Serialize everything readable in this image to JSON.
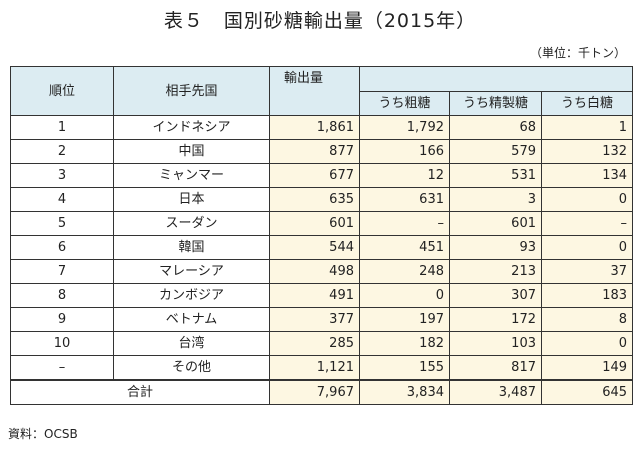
{
  "title": "表５　国別砂糖輸出量（2015年）",
  "unit": "（単位：千トン）",
  "source": "資料：OCSB",
  "headers": {
    "rank": "順位",
    "partner": "相手先国",
    "export": "輸出量",
    "raw": "うち粗糖",
    "refined": "うち精製糖",
    "white": "うち白糖"
  },
  "rows": [
    {
      "rank": "1",
      "partner": "インドネシア",
      "export": "1,861",
      "raw": "1,792",
      "refined": "68",
      "white": "1"
    },
    {
      "rank": "2",
      "partner": "中国",
      "export": "877",
      "raw": "166",
      "refined": "579",
      "white": "132"
    },
    {
      "rank": "3",
      "partner": "ミャンマー",
      "export": "677",
      "raw": "12",
      "refined": "531",
      "white": "134"
    },
    {
      "rank": "4",
      "partner": "日本",
      "export": "635",
      "raw": "631",
      "refined": "3",
      "white": "0"
    },
    {
      "rank": "5",
      "partner": "スーダン",
      "export": "601",
      "raw": "–",
      "refined": "601",
      "white": "–"
    },
    {
      "rank": "6",
      "partner": "韓国",
      "export": "544",
      "raw": "451",
      "refined": "93",
      "white": "0"
    },
    {
      "rank": "7",
      "partner": "マレーシア",
      "export": "498",
      "raw": "248",
      "refined": "213",
      "white": "37"
    },
    {
      "rank": "8",
      "partner": "カンボジア",
      "export": "491",
      "raw": "0",
      "refined": "307",
      "white": "183"
    },
    {
      "rank": "9",
      "partner": "ベトナム",
      "export": "377",
      "raw": "197",
      "refined": "172",
      "white": "8"
    },
    {
      "rank": "10",
      "partner": "台湾",
      "export": "285",
      "raw": "182",
      "refined": "103",
      "white": "0"
    },
    {
      "rank": "–",
      "partner": "その他",
      "export": "1,121",
      "raw": "155",
      "refined": "817",
      "white": "149"
    }
  ],
  "total": {
    "label": "合計",
    "export": "7,967",
    "raw": "3,834",
    "refined": "3,487",
    "white": "645"
  }
}
